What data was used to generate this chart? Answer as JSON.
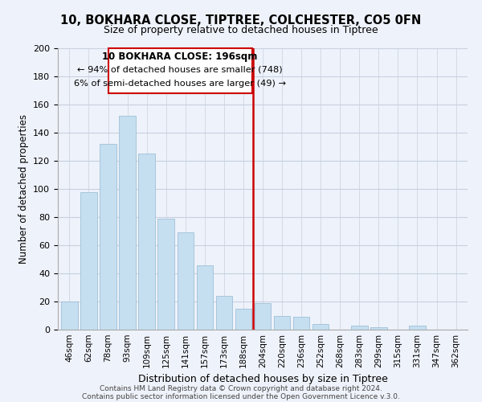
{
  "title": "10, BOKHARA CLOSE, TIPTREE, COLCHESTER, CO5 0FN",
  "subtitle": "Size of property relative to detached houses in Tiptree",
  "xlabel": "Distribution of detached houses by size in Tiptree",
  "ylabel": "Number of detached properties",
  "bar_labels": [
    "46sqm",
    "62sqm",
    "78sqm",
    "93sqm",
    "109sqm",
    "125sqm",
    "141sqm",
    "157sqm",
    "173sqm",
    "188sqm",
    "204sqm",
    "220sqm",
    "236sqm",
    "252sqm",
    "268sqm",
    "283sqm",
    "299sqm",
    "315sqm",
    "331sqm",
    "347sqm",
    "362sqm"
  ],
  "bar_heights": [
    20,
    98,
    132,
    152,
    125,
    79,
    69,
    46,
    24,
    15,
    19,
    10,
    9,
    4,
    0,
    3,
    2,
    0,
    3,
    0,
    0
  ],
  "bar_color": "#c5dff0",
  "bar_edge_color": "#a0c0d8",
  "vline_x": 9.5,
  "vline_color": "#cc0000",
  "annotation_title": "10 BOKHARA CLOSE: 196sqm",
  "annotation_line1": "← 94% of detached houses are smaller (748)",
  "annotation_line2": "6% of semi-detached houses are larger (49) →",
  "annotation_box_color": "#ffffff",
  "annotation_box_edge": "#cc0000",
  "ylim": [
    0,
    200
  ],
  "yticks": [
    0,
    20,
    40,
    60,
    80,
    100,
    120,
    140,
    160,
    180,
    200
  ],
  "footer1": "Contains HM Land Registry data © Crown copyright and database right 2024.",
  "footer2": "Contains public sector information licensed under the Open Government Licence v.3.0.",
  "background_color": "#eef2fa",
  "grid_color": "#c8d0e0"
}
